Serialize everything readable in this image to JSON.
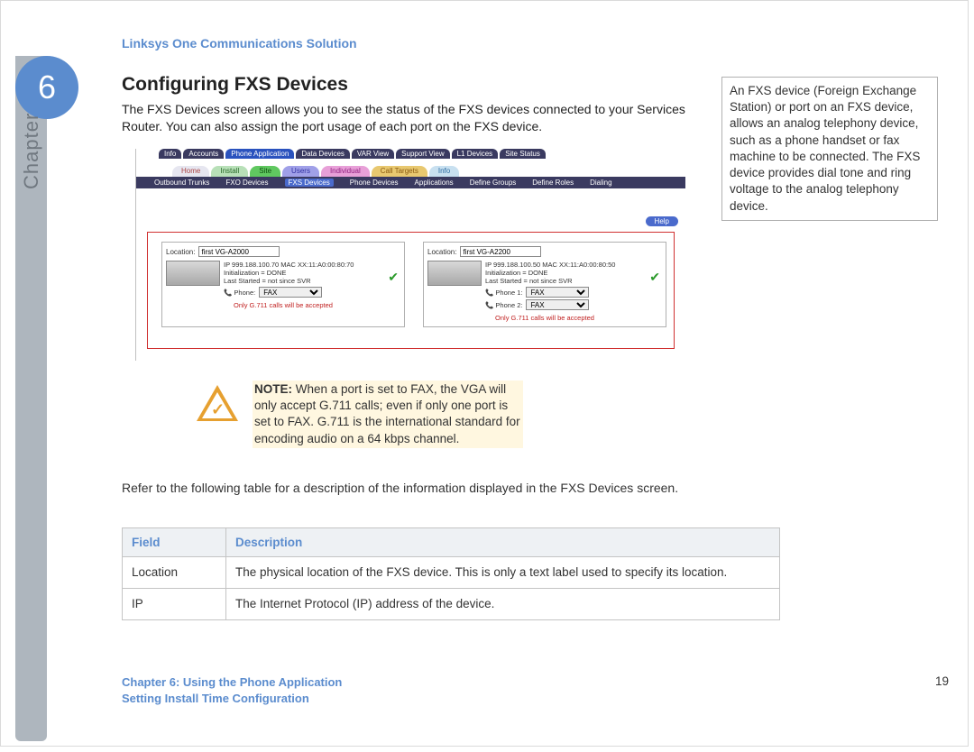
{
  "header": "Linksys One Communications Solution",
  "chapter": {
    "number": "6",
    "label": "Chapter"
  },
  "section_title": "Configuring FXS Devices",
  "intro": "The FXS Devices screen allows you to see the status of the FXS devices connected to your Services Router. You can also assign the port usage of each port on the FXS device.",
  "sidebar": "An FXS device (Foreign Exchange Station) or port on an FXS device, allows an analog telephony device, such as a phone handset or fax machine to be connected. The FXS device provides dial tone and ring voltage to the analog telephony device.",
  "screenshot": {
    "top_tabs": [
      "Info",
      "Accounts",
      "Phone Application",
      "Data Devices",
      "VAR View",
      "Support View",
      "L1 Devices",
      "Site Status"
    ],
    "top_tabs_selected": 2,
    "mid_tabs": [
      {
        "label": "Home",
        "bg": "#e6e6f0",
        "fg": "#aa4444"
      },
      {
        "label": "Install",
        "bg": "#b8e0b8",
        "fg": "#2a6a2a"
      },
      {
        "label": "Site",
        "bg": "#60c860",
        "fg": "#105010"
      },
      {
        "label": "Users",
        "bg": "#a0a0e8",
        "fg": "#3030a0"
      },
      {
        "label": "Individual",
        "bg": "#e8a0d8",
        "fg": "#902080"
      },
      {
        "label": "Call Targets",
        "bg": "#e8c870",
        "fg": "#8a5a10"
      },
      {
        "label": "Info",
        "bg": "#c8e0f0",
        "fg": "#2a6aa0"
      }
    ],
    "sub_tabs": [
      "Outbound Trunks",
      "FXO Devices",
      "FXS Devices",
      "Phone Devices",
      "Applications",
      "Define Groups",
      "Define Roles",
      "Dialing"
    ],
    "sub_selected": 2,
    "help": "Help",
    "devices": [
      {
        "location_label": "Location:",
        "location_value": "first VG-A2000",
        "ip": "IP 999.188.100.70  MAC XX:11:A0:00:80:70",
        "init": "Initialization = DONE",
        "last": "Last Started = not since SVR",
        "phones": [
          {
            "label": "Phone:",
            "value": "FAX"
          }
        ],
        "warn": "Only G.711 calls will be accepted"
      },
      {
        "location_label": "Location:",
        "location_value": "first VG-A2200",
        "ip": "IP 999.188.100.50  MAC XX:11:A0:00:80:50",
        "init": "Initialization = DONE",
        "last": "Last Started = not since SVR",
        "phones": [
          {
            "label": "Phone 1:",
            "value": "FAX"
          },
          {
            "label": "Phone 2:",
            "value": "FAX"
          }
        ],
        "warn": "Only G.711 calls will be accepted"
      }
    ]
  },
  "note": {
    "bold": "NOTE:",
    "text": " When a port is set to FAX, the VGA will only accept G.711 calls; even if only one port is set to FAX. G.711 is the international standard for encoding audio on a 64 kbps channel."
  },
  "table_intro": "Refer to the following table for a description of the information displayed in the FXS Devices screen.",
  "table": {
    "headers": [
      "Field",
      "Description"
    ],
    "rows": [
      [
        "Location",
        "The physical location of the FXS device. This is only a text label used to specify its location."
      ],
      [
        "IP",
        "The Internet Protocol (IP) address of the device."
      ]
    ]
  },
  "footer": {
    "line1": "Chapter 6: Using the Phone Application",
    "line2": "Setting Install Time Configuration"
  },
  "page_number": "19",
  "colors": {
    "accent": "#5b8cce",
    "band": "#aeb6be",
    "note_bg": "#fff7e0",
    "warn_triangle": "#e6a030",
    "table_header_bg": "#eef1f4",
    "red_border": "#d03030"
  }
}
